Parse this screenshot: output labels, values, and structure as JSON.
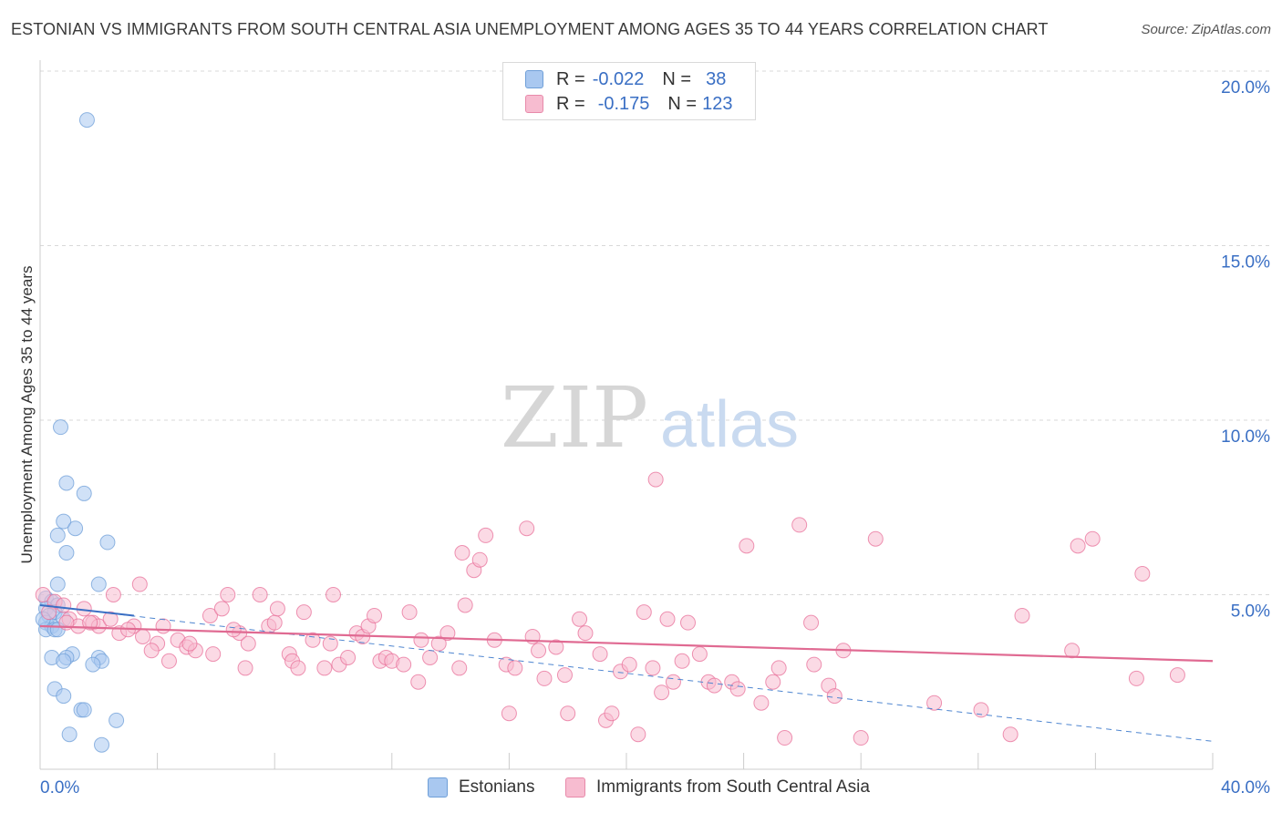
{
  "header": {
    "title": "ESTONIAN VS IMMIGRANTS FROM SOUTH CENTRAL ASIA UNEMPLOYMENT AMONG AGES 35 TO 44 YEARS CORRELATION CHART",
    "source": "Source: ZipAtlas.com"
  },
  "watermark": {
    "zip": "ZIP",
    "atlas": "atlas"
  },
  "legend_top": {
    "rows": [
      {
        "r_label": "R =",
        "r_value": "-0.022",
        "n_label": "N =",
        "n_value": "38",
        "color": "#a9c8f0",
        "border": "#6f9fd8"
      },
      {
        "r_label": "R =",
        "r_value": "-0.175",
        "n_label": "N =",
        "n_value": "123",
        "color": "#f7bcd0",
        "border": "#e88aaa"
      }
    ]
  },
  "legend_bottom": {
    "items": [
      {
        "label": "Estonians",
        "color": "#a9c8f0",
        "border": "#6f9fd8"
      },
      {
        "label": "Immigrants from South Central Asia",
        "color": "#f7bcd0",
        "border": "#e88aaa"
      }
    ]
  },
  "chart_data": {
    "type": "scatter",
    "title": "ESTONIAN VS IMMIGRANTS FROM SOUTH CENTRAL ASIA UNEMPLOYMENT AMONG AGES 35 TO 44 YEARS CORRELATION CHART",
    "xlabel": "",
    "ylabel": "Unemployment Among Ages 35 to 44 years",
    "xlim": [
      0,
      40
    ],
    "ylim": [
      0,
      20
    ],
    "x_tick_labels": [
      "0.0%",
      "40.0%"
    ],
    "y_ticks": [
      5,
      10,
      15,
      20
    ],
    "y_tick_labels": [
      "5.0%",
      "10.0%",
      "15.0%",
      "20.0%"
    ],
    "grid": "horizontal dashed",
    "legend_placement": "top-center",
    "series": [
      {
        "name": "Estonians",
        "color": "#6f9fd8",
        "fill": "#a9c8f0",
        "trend": {
          "x": [
            0,
            40
          ],
          "y": [
            4.7,
            0.8
          ],
          "style": "dashed"
        },
        "trend_solid": {
          "x": [
            0,
            3.2
          ],
          "y": [
            4.7,
            4.4
          ]
        },
        "points": [
          [
            1.6,
            18.6
          ],
          [
            0.7,
            9.8
          ],
          [
            0.9,
            8.2
          ],
          [
            1.5,
            7.9
          ],
          [
            0.8,
            7.1
          ],
          [
            1.2,
            6.9
          ],
          [
            0.6,
            6.7
          ],
          [
            2.3,
            6.5
          ],
          [
            0.9,
            6.2
          ],
          [
            0.6,
            5.3
          ],
          [
            2.0,
            5.3
          ],
          [
            0.2,
            4.9
          ],
          [
            0.4,
            4.8
          ],
          [
            0.6,
            4.7
          ],
          [
            0.2,
            4.6
          ],
          [
            0.5,
            4.5
          ],
          [
            0.3,
            4.4
          ],
          [
            0.8,
            4.3
          ],
          [
            0.2,
            4.2
          ],
          [
            0.4,
            4.1
          ],
          [
            0.2,
            4.0
          ],
          [
            0.5,
            4.0
          ],
          [
            0.6,
            4.0
          ],
          [
            1.1,
            3.3
          ],
          [
            2.0,
            3.2
          ],
          [
            0.4,
            3.2
          ],
          [
            0.9,
            3.2
          ],
          [
            2.1,
            3.1
          ],
          [
            0.8,
            3.1
          ],
          [
            1.8,
            3.0
          ],
          [
            0.5,
            2.3
          ],
          [
            0.8,
            2.1
          ],
          [
            1.4,
            1.7
          ],
          [
            1.5,
            1.7
          ],
          [
            2.6,
            1.4
          ],
          [
            1.0,
            1.0
          ],
          [
            2.1,
            0.7
          ],
          [
            0.1,
            4.3
          ]
        ]
      },
      {
        "name": "Immigrants from South Central Asia",
        "color": "#e8709a",
        "fill": "#f7bcd0",
        "trend": {
          "x": [
            0,
            40
          ],
          "y": [
            4.1,
            3.1
          ],
          "style": "solid"
        },
        "points": [
          [
            0.1,
            5.0
          ],
          [
            0.5,
            4.8
          ],
          [
            0.8,
            4.7
          ],
          [
            1.5,
            4.6
          ],
          [
            0.3,
            4.5
          ],
          [
            1.0,
            4.3
          ],
          [
            1.3,
            4.1
          ],
          [
            1.8,
            4.2
          ],
          [
            2.0,
            4.1
          ],
          [
            2.4,
            4.3
          ],
          [
            3.2,
            4.1
          ],
          [
            3.5,
            3.8
          ],
          [
            2.7,
            3.9
          ],
          [
            3.0,
            4.0
          ],
          [
            2.5,
            5.0
          ],
          [
            3.4,
            5.3
          ],
          [
            4.2,
            4.1
          ],
          [
            4.0,
            3.6
          ],
          [
            4.4,
            3.1
          ],
          [
            3.8,
            3.4
          ],
          [
            4.7,
            3.7
          ],
          [
            5.0,
            3.5
          ],
          [
            5.3,
            3.4
          ],
          [
            5.1,
            3.6
          ],
          [
            5.9,
            3.3
          ],
          [
            5.8,
            4.4
          ],
          [
            6.2,
            4.6
          ],
          [
            6.4,
            5.0
          ],
          [
            6.8,
            3.9
          ],
          [
            6.6,
            4.0
          ],
          [
            7.0,
            2.9
          ],
          [
            7.1,
            3.6
          ],
          [
            7.5,
            5.0
          ],
          [
            7.8,
            4.1
          ],
          [
            8.0,
            4.2
          ],
          [
            8.1,
            4.6
          ],
          [
            8.5,
            3.3
          ],
          [
            8.6,
            3.1
          ],
          [
            8.8,
            2.9
          ],
          [
            9.0,
            4.5
          ],
          [
            9.3,
            3.7
          ],
          [
            9.7,
            2.9
          ],
          [
            9.9,
            3.6
          ],
          [
            10.2,
            3.0
          ],
          [
            10.0,
            5.0
          ],
          [
            10.5,
            3.2
          ],
          [
            10.8,
            3.9
          ],
          [
            11.0,
            3.8
          ],
          [
            11.2,
            4.1
          ],
          [
            11.4,
            4.4
          ],
          [
            11.6,
            3.1
          ],
          [
            11.8,
            3.2
          ],
          [
            12.0,
            3.1
          ],
          [
            12.4,
            3.0
          ],
          [
            12.6,
            4.5
          ],
          [
            12.9,
            2.5
          ],
          [
            13.0,
            3.7
          ],
          [
            13.3,
            3.2
          ],
          [
            13.6,
            3.6
          ],
          [
            13.9,
            3.9
          ],
          [
            14.3,
            2.9
          ],
          [
            14.5,
            4.7
          ],
          [
            14.4,
            6.2
          ],
          [
            14.8,
            5.7
          ],
          [
            15.0,
            6.0
          ],
          [
            15.2,
            6.7
          ],
          [
            15.5,
            3.7
          ],
          [
            15.9,
            3.0
          ],
          [
            16.0,
            1.6
          ],
          [
            16.2,
            2.9
          ],
          [
            16.6,
            6.9
          ],
          [
            16.8,
            3.8
          ],
          [
            17.0,
            3.4
          ],
          [
            17.2,
            2.6
          ],
          [
            17.6,
            3.5
          ],
          [
            17.9,
            2.7
          ],
          [
            18.0,
            1.6
          ],
          [
            18.4,
            4.3
          ],
          [
            18.6,
            3.9
          ],
          [
            19.1,
            3.3
          ],
          [
            19.3,
            1.4
          ],
          [
            19.5,
            1.6
          ],
          [
            19.8,
            2.8
          ],
          [
            20.1,
            3.0
          ],
          [
            20.4,
            1.0
          ],
          [
            20.6,
            4.5
          ],
          [
            20.9,
            2.9
          ],
          [
            21.2,
            2.2
          ],
          [
            21.4,
            4.3
          ],
          [
            21.6,
            2.5
          ],
          [
            21.9,
            3.1
          ],
          [
            22.1,
            4.2
          ],
          [
            22.5,
            3.3
          ],
          [
            21.0,
            8.3
          ],
          [
            22.8,
            2.5
          ],
          [
            23.0,
            2.4
          ],
          [
            23.6,
            2.5
          ],
          [
            23.8,
            2.3
          ],
          [
            24.1,
            6.4
          ],
          [
            24.6,
            1.9
          ],
          [
            25.0,
            2.5
          ],
          [
            25.2,
            2.9
          ],
          [
            25.4,
            0.9
          ],
          [
            25.9,
            7.0
          ],
          [
            26.3,
            4.2
          ],
          [
            26.4,
            3.0
          ],
          [
            26.9,
            2.4
          ],
          [
            27.1,
            2.1
          ],
          [
            27.4,
            3.4
          ],
          [
            28.0,
            0.9
          ],
          [
            28.5,
            6.6
          ],
          [
            30.5,
            1.9
          ],
          [
            32.1,
            1.7
          ],
          [
            33.1,
            1.0
          ],
          [
            33.5,
            4.4
          ],
          [
            35.2,
            3.4
          ],
          [
            35.4,
            6.4
          ],
          [
            35.9,
            6.6
          ],
          [
            37.4,
            2.6
          ],
          [
            37.6,
            5.6
          ],
          [
            38.8,
            2.7
          ],
          [
            0.9,
            4.2
          ],
          [
            1.7,
            4.2
          ]
        ]
      }
    ]
  }
}
